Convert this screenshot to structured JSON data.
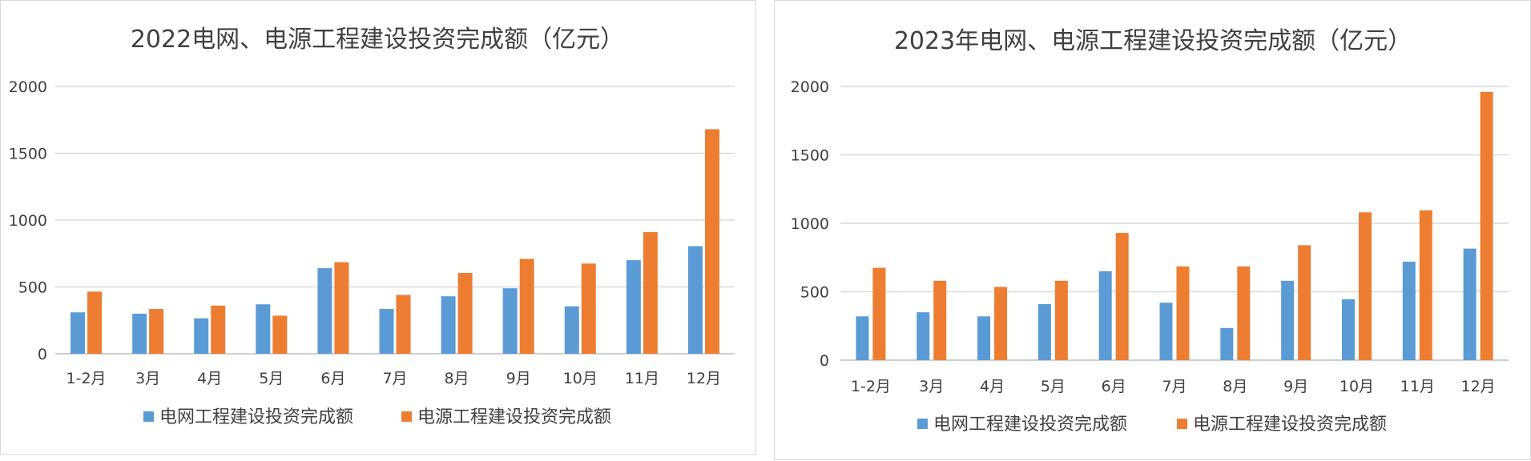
{
  "chart_data": [
    {
      "type": "bar",
      "title": "2022电网、电源工程建设投资完成额（亿元）",
      "categories": [
        "1-2月",
        "3月",
        "4月",
        "5月",
        "6月",
        "7月",
        "8月",
        "9月",
        "10月",
        "11月",
        "12月"
      ],
      "ylim": [
        0,
        2000
      ],
      "yticks": [
        "0",
        "500",
        "1000",
        "1500",
        "2000"
      ],
      "grid": true,
      "legend_position": "bottom",
      "series": [
        {
          "name": "电网工程建设投资完成额",
          "color": "#5b9bd5",
          "values": [
            310,
            300,
            265,
            370,
            640,
            335,
            430,
            490,
            355,
            700,
            805
          ]
        },
        {
          "name": "电源工程建设投资完成额",
          "color": "#ed7d31",
          "values": [
            465,
            335,
            360,
            285,
            685,
            440,
            605,
            710,
            675,
            910,
            1680
          ]
        }
      ]
    },
    {
      "type": "bar",
      "title": "2023年电网、电源工程建设投资完成额（亿元）",
      "categories": [
        "1-2月",
        "3月",
        "4月",
        "5月",
        "6月",
        "7月",
        "8月",
        "9月",
        "10月",
        "11月",
        "12月"
      ],
      "ylim": [
        0,
        2000
      ],
      "yticks": [
        "0",
        "500",
        "1000",
        "1500",
        "2000"
      ],
      "grid": true,
      "legend_position": "bottom",
      "series": [
        {
          "name": "电网工程建设投资完成额",
          "color": "#5b9bd5",
          "values": [
            320,
            350,
            320,
            410,
            650,
            420,
            235,
            580,
            445,
            720,
            815
          ]
        },
        {
          "name": "电源工程建设投资完成额",
          "color": "#ed7d31",
          "values": [
            675,
            580,
            535,
            580,
            930,
            685,
            685,
            840,
            1080,
            1095,
            1960
          ]
        }
      ]
    }
  ]
}
